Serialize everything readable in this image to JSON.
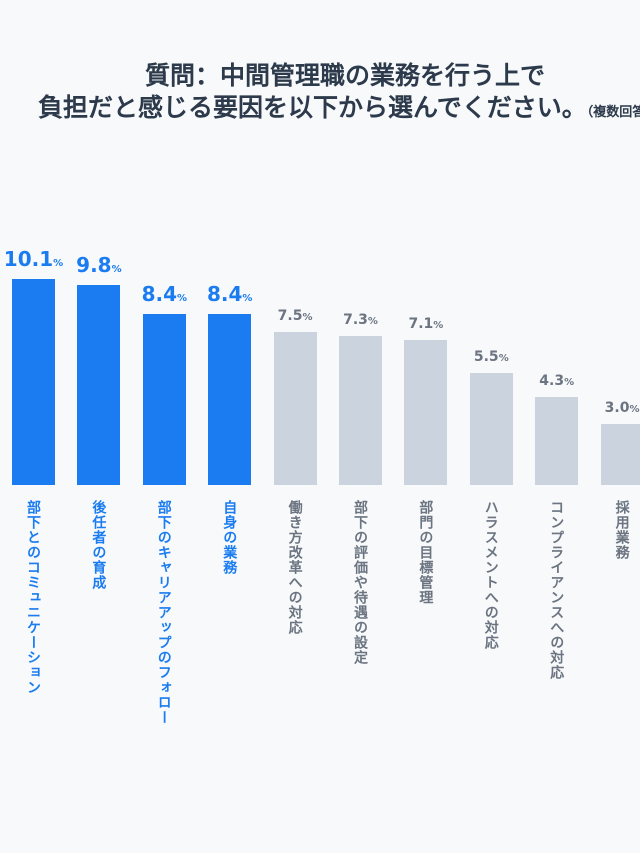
{
  "header": {
    "title_line1": "質問：中間管理職の業務を行う上で",
    "title_line2": "負担だと感じる要因を以下から選んでください。",
    "title_note": "（複数回答可）"
  },
  "chart_data": {
    "type": "bar",
    "title": "質問：中間管理職の業務を行う上で負担だと感じる要因を以下から選んでください。（複数回答可）",
    "categories": [
      "部下とのコミュニケーション",
      "後任者の育成",
      "部下のキャリアアップのフォロー",
      "自身の業務",
      "働き方改革への対応",
      "部下の評価や待遇の設定",
      "部門の目標管理",
      "ハラスメントへの対応",
      "コンプライアンスへの対応",
      "採用業務"
    ],
    "values": [
      10.1,
      9.8,
      8.4,
      8.4,
      7.5,
      7.3,
      7.1,
      5.5,
      4.3,
      3.0
    ],
    "value_labels": [
      "10.1",
      "9.8",
      "8.4",
      "8.4",
      "7.5",
      "7.3",
      "7.1",
      "5.5",
      "4.3",
      "3.0"
    ],
    "unit": "%",
    "highlight_count": 4,
    "colors": {
      "highlight": "#1a7cf0",
      "normal": "#cbd3de",
      "normal_text": "#6b7480"
    },
    "xlabel": "",
    "ylabel": "",
    "ylim": [
      0,
      10.1
    ],
    "grid": false
  }
}
